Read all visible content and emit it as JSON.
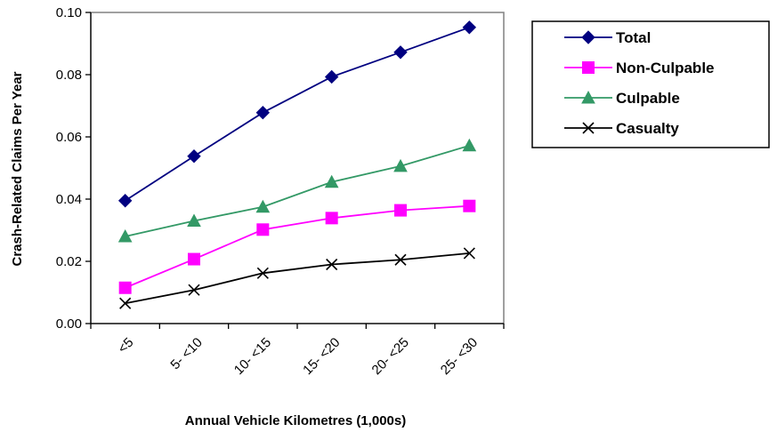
{
  "chart_data": {
    "type": "line",
    "title": "",
    "xlabel": "Annual Vehicle Kilometres (1,000s)",
    "ylabel": "Crash-Related Claims Per Year",
    "categories": [
      "<5",
      "5- <10",
      "10- <15",
      "15- <20",
      "20- <25",
      "25- <30"
    ],
    "ylim": [
      0,
      0.1
    ],
    "yticks": [
      "0.00",
      "0.02",
      "0.04",
      "0.06",
      "0.08",
      "0.10"
    ],
    "grid": false,
    "legend_position": "right",
    "series": [
      {
        "name": "Total",
        "color": "#000080",
        "marker": "diamond",
        "values": [
          0.0395,
          0.0538,
          0.0678,
          0.0793,
          0.0872,
          0.0952
        ]
      },
      {
        "name": "Non-Culpable",
        "color": "#FF00FF",
        "marker": "square",
        "values": [
          0.0115,
          0.0207,
          0.0302,
          0.0339,
          0.0364,
          0.0378
        ]
      },
      {
        "name": "Culpable",
        "color": "#339966",
        "marker": "triangle",
        "values": [
          0.028,
          0.033,
          0.0375,
          0.0455,
          0.0506,
          0.0572
        ]
      },
      {
        "name": "Casualty",
        "color": "#000000",
        "marker": "x",
        "values": [
          0.0065,
          0.0108,
          0.0162,
          0.019,
          0.0205,
          0.0226
        ]
      }
    ]
  }
}
